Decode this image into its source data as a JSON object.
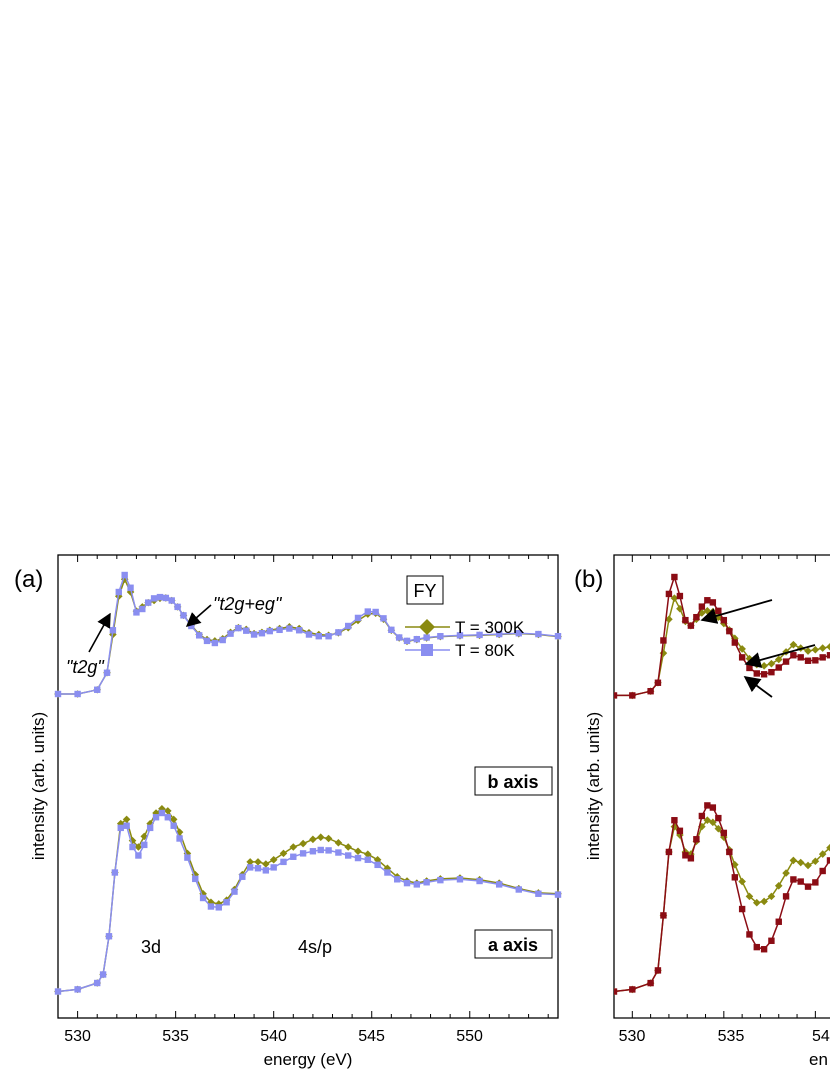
{
  "chart_data": [
    {
      "type": "line",
      "panel_label": "(a)",
      "title": "",
      "xlabel": "energy (eV)",
      "ylabel": "intensity (arb. units)",
      "xlim": [
        529,
        554.5
      ],
      "ylim": [
        0,
        1
      ],
      "x_ticks": [
        "530",
        "535",
        "540",
        "545",
        "550"
      ],
      "grid": false,
      "legend": {
        "placement": "top-right",
        "title": "FY",
        "entries": [
          "T = 300K",
          "T = 80K"
        ]
      },
      "colors": {
        "T300K": "#8a8a10",
        "T80K": "#8a8ef0"
      },
      "annotations": {
        "t2g": "\"t2g\"",
        "t2g_eg": "\"t2g+eg\"",
        "label_3d": "3d",
        "label_4sp": "4s/p",
        "b_axis": "b axis",
        "a_axis": "a axis"
      },
      "groups": [
        {
          "name": "b axis",
          "x": [
            529.0,
            530.0,
            531.0,
            531.5,
            531.8,
            532.1,
            532.4,
            532.7,
            533.0,
            533.3,
            533.6,
            533.9,
            534.2,
            534.5,
            534.8,
            535.1,
            535.4,
            535.8,
            536.2,
            536.6,
            537.0,
            537.4,
            537.8,
            538.2,
            538.6,
            539.0,
            539.4,
            539.8,
            540.3,
            540.8,
            541.3,
            541.8,
            542.3,
            542.8,
            543.3,
            543.8,
            544.3,
            544.8,
            545.2,
            545.6,
            546.0,
            546.4,
            546.8,
            547.3,
            547.8,
            548.5,
            549.5,
            550.5,
            551.5,
            552.5,
            553.5,
            554.5
          ],
          "series": [
            {
              "name": "T = 300K",
              "values": [
                0.72,
                0.72,
                0.73,
                0.77,
                0.86,
                0.95,
                0.99,
                0.96,
                0.915,
                0.925,
                0.935,
                0.94,
                0.945,
                0.946,
                0.94,
                0.925,
                0.905,
                0.882,
                0.86,
                0.848,
                0.845,
                0.85,
                0.865,
                0.876,
                0.872,
                0.862,
                0.865,
                0.87,
                0.874,
                0.878,
                0.874,
                0.864,
                0.86,
                0.858,
                0.864,
                0.876,
                0.893,
                0.908,
                0.91,
                0.896,
                0.87,
                0.852,
                0.844,
                0.848,
                0.852,
                0.855,
                0.857,
                0.858,
                0.86,
                0.862,
                0.86,
                0.855
              ]
            },
            {
              "name": "T = 80K",
              "values": [
                0.72,
                0.72,
                0.73,
                0.77,
                0.87,
                0.96,
                1.0,
                0.97,
                0.912,
                0.92,
                0.935,
                0.945,
                0.948,
                0.946,
                0.94,
                0.925,
                0.905,
                0.88,
                0.858,
                0.845,
                0.84,
                0.847,
                0.862,
                0.875,
                0.869,
                0.86,
                0.863,
                0.868,
                0.871,
                0.874,
                0.87,
                0.86,
                0.856,
                0.856,
                0.865,
                0.88,
                0.899,
                0.914,
                0.913,
                0.898,
                0.871,
                0.853,
                0.845,
                0.849,
                0.853,
                0.856,
                0.858,
                0.859,
                0.861,
                0.863,
                0.861,
                0.856
              ]
            }
          ]
        },
        {
          "name": "a axis",
          "x": [
            529.0,
            530.0,
            531.0,
            531.3,
            531.6,
            531.9,
            532.2,
            532.5,
            532.8,
            533.1,
            533.4,
            533.7,
            534.0,
            534.3,
            534.6,
            534.9,
            535.2,
            535.6,
            536.0,
            536.4,
            536.8,
            537.2,
            537.6,
            538.0,
            538.4,
            538.8,
            539.2,
            539.6,
            540.0,
            540.5,
            541.0,
            541.5,
            542.0,
            542.4,
            542.8,
            543.3,
            543.8,
            544.3,
            544.8,
            545.3,
            545.8,
            546.3,
            546.8,
            547.3,
            547.8,
            548.5,
            549.5,
            550.5,
            551.5,
            552.5,
            553.5,
            554.5
          ],
          "series": [
            {
              "name": "T = 300K",
              "values": [
                0.02,
                0.025,
                0.04,
                0.06,
                0.15,
                0.3,
                0.415,
                0.425,
                0.375,
                0.36,
                0.385,
                0.415,
                0.44,
                0.45,
                0.445,
                0.425,
                0.395,
                0.345,
                0.295,
                0.25,
                0.23,
                0.226,
                0.235,
                0.26,
                0.295,
                0.325,
                0.325,
                0.32,
                0.33,
                0.345,
                0.36,
                0.368,
                0.378,
                0.383,
                0.38,
                0.37,
                0.36,
                0.35,
                0.343,
                0.33,
                0.31,
                0.29,
                0.28,
                0.275,
                0.28,
                0.285,
                0.287,
                0.283,
                0.275,
                0.262,
                0.252,
                0.25
              ]
            },
            {
              "name": "T = 80K",
              "values": [
                0.02,
                0.025,
                0.04,
                0.06,
                0.15,
                0.3,
                0.405,
                0.41,
                0.36,
                0.34,
                0.365,
                0.405,
                0.43,
                0.44,
                0.43,
                0.41,
                0.38,
                0.335,
                0.285,
                0.24,
                0.22,
                0.218,
                0.23,
                0.255,
                0.29,
                0.312,
                0.31,
                0.305,
                0.312,
                0.325,
                0.337,
                0.345,
                0.35,
                0.353,
                0.352,
                0.347,
                0.34,
                0.334,
                0.33,
                0.318,
                0.3,
                0.284,
                0.275,
                0.272,
                0.277,
                0.282,
                0.284,
                0.28,
                0.272,
                0.26,
                0.25,
                0.248
              ]
            }
          ]
        }
      ]
    },
    {
      "type": "line",
      "panel_label": "(b)",
      "title": "",
      "xlabel": "en",
      "ylabel": "intensity (arb. units)",
      "xlim": [
        529,
        540.8
      ],
      "ylim": [
        0,
        1
      ],
      "x_ticks": [
        "530",
        "535",
        "54"
      ],
      "grid": false,
      "colors": {
        "olive": "#8a8a10",
        "darkred": "#8b0c14"
      },
      "groups": [
        {
          "name": "upper",
          "x": [
            529.0,
            530.0,
            531.0,
            531.4,
            531.7,
            532.0,
            532.3,
            532.6,
            532.9,
            533.2,
            533.5,
            533.8,
            534.1,
            534.4,
            534.7,
            535.0,
            535.3,
            535.6,
            536.0,
            536.4,
            536.8,
            537.2,
            537.6,
            538.0,
            538.4,
            538.8,
            539.2,
            539.6,
            540.0,
            540.4,
            540.8
          ],
          "series": [
            {
              "name": "olive",
              "values": [
                0.72,
                0.72,
                0.73,
                0.75,
                0.82,
                0.9,
                0.95,
                0.925,
                0.895,
                0.885,
                0.9,
                0.915,
                0.92,
                0.918,
                0.905,
                0.89,
                0.875,
                0.855,
                0.83,
                0.807,
                0.793,
                0.79,
                0.795,
                0.805,
                0.823,
                0.84,
                0.832,
                0.825,
                0.828,
                0.832,
                0.835
              ]
            },
            {
              "name": "darkred",
              "values": [
                0.72,
                0.72,
                0.73,
                0.75,
                0.85,
                0.96,
                1.0,
                0.955,
                0.898,
                0.885,
                0.905,
                0.93,
                0.945,
                0.94,
                0.92,
                0.898,
                0.872,
                0.845,
                0.81,
                0.785,
                0.772,
                0.77,
                0.775,
                0.786,
                0.8,
                0.815,
                0.81,
                0.802,
                0.803,
                0.81,
                0.815
              ]
            }
          ]
        },
        {
          "name": "lower",
          "x": [
            529.0,
            530.0,
            531.0,
            531.4,
            531.7,
            532.0,
            532.3,
            532.6,
            532.9,
            533.2,
            533.5,
            533.8,
            534.1,
            534.4,
            534.7,
            535.0,
            535.3,
            535.6,
            536.0,
            536.4,
            536.8,
            537.2,
            537.6,
            538.0,
            538.4,
            538.8,
            539.2,
            539.6,
            540.0,
            540.4,
            540.8
          ],
          "series": [
            {
              "name": "olive",
              "values": [
                0.02,
                0.025,
                0.04,
                0.07,
                0.2,
                0.35,
                0.41,
                0.39,
                0.35,
                0.345,
                0.375,
                0.41,
                0.425,
                0.42,
                0.405,
                0.385,
                0.355,
                0.32,
                0.28,
                0.245,
                0.23,
                0.233,
                0.245,
                0.27,
                0.3,
                0.33,
                0.325,
                0.318,
                0.328,
                0.345,
                0.36
              ]
            },
            {
              "name": "darkred",
              "values": [
                0.02,
                0.025,
                0.04,
                0.07,
                0.2,
                0.35,
                0.425,
                0.4,
                0.342,
                0.335,
                0.38,
                0.435,
                0.46,
                0.455,
                0.43,
                0.395,
                0.35,
                0.29,
                0.215,
                0.155,
                0.125,
                0.12,
                0.14,
                0.185,
                0.245,
                0.285,
                0.28,
                0.268,
                0.278,
                0.305,
                0.33
              ]
            }
          ]
        }
      ]
    }
  ]
}
